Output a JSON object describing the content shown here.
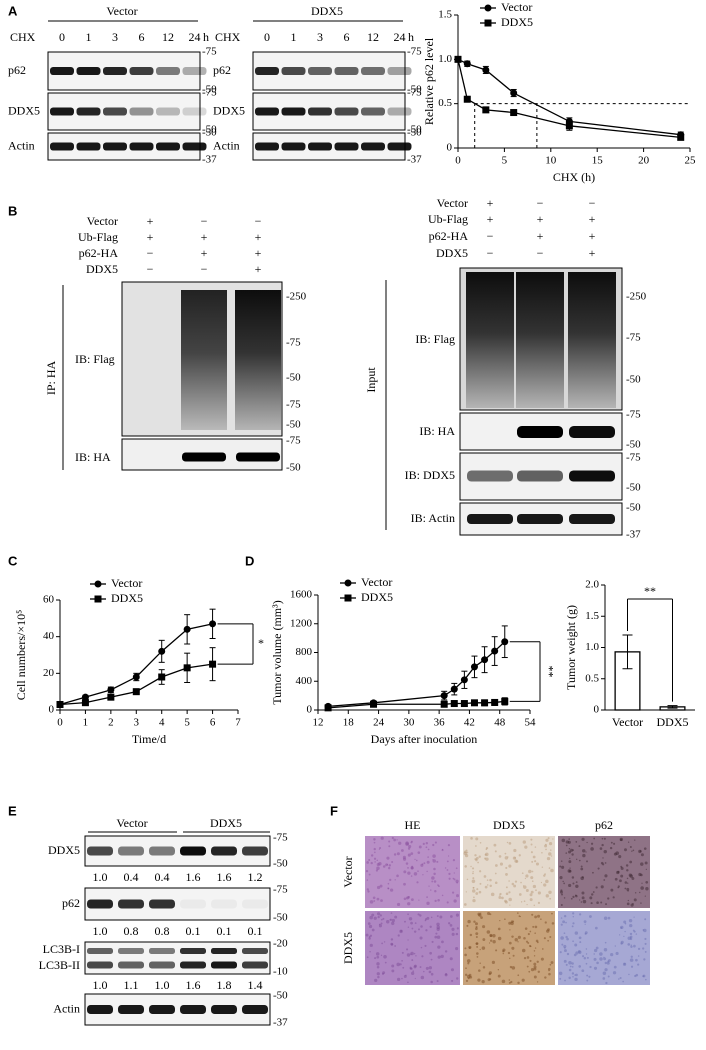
{
  "panel_labels": [
    "A",
    "B",
    "C",
    "D",
    "E",
    "F"
  ],
  "a_blots": [
    {
      "title": "Vector",
      "treatment": "CHX",
      "lanes": [
        "0",
        "1",
        "3",
        "6",
        "12",
        "24"
      ],
      "unit": "h",
      "rows": [
        "p62",
        "DDX5",
        "Actin"
      ],
      "markers": [
        [
          "-75",
          "-50"
        ],
        [
          "-75",
          "-50"
        ],
        [
          "-50",
          "-37"
        ]
      ]
    },
    {
      "title": "DDX5",
      "treatment": "CHX",
      "lanes": [
        "0",
        "1",
        "3",
        "6",
        "12",
        "24"
      ],
      "unit": "h",
      "rows": [
        "p62",
        "DDX5",
        "Actin"
      ],
      "markers": [
        [
          "-75",
          "-50"
        ],
        [
          "-75",
          "-50"
        ],
        [
          "-50",
          "-37"
        ]
      ]
    }
  ],
  "b_ip": {
    "conditions": [
      {
        "name": "Vector",
        "marks": [
          "+",
          "−",
          "−"
        ]
      },
      {
        "name": "Ub-Flag",
        "marks": [
          "+",
          "+",
          "+"
        ]
      },
      {
        "name": "p62-HA",
        "marks": [
          "−",
          "+",
          "+"
        ]
      },
      {
        "name": "DDX5",
        "marks": [
          "−",
          "−",
          "+"
        ]
      }
    ],
    "group_label": "IP: HA",
    "rows": [
      "IB: Flag",
      "IB: HA"
    ],
    "markers": [
      [
        "-250",
        "-75",
        "-50",
        "-75",
        "-50"
      ],
      [
        "-75",
        "-50"
      ]
    ]
  },
  "b_input": {
    "conditions": [
      {
        "name": "Vector",
        "marks": [
          "+",
          "−",
          "−"
        ]
      },
      {
        "name": "Ub-Flag",
        "marks": [
          "+",
          "+",
          "+"
        ]
      },
      {
        "name": "p62-HA",
        "marks": [
          "−",
          "+",
          "+"
        ]
      },
      {
        "name": "DDX5",
        "marks": [
          "−",
          "−",
          "+"
        ]
      }
    ],
    "group_label": "Input",
    "rows": [
      "IB: Flag",
      "IB: HA",
      "IB: DDX5",
      "IB: Actin"
    ],
    "markers": [
      [
        "-250",
        "-75",
        "-50"
      ],
      [
        "-75",
        "-50"
      ],
      [
        "-75",
        "-50"
      ],
      [
        "-50",
        "-37"
      ]
    ]
  },
  "e_blot": {
    "groups": [
      "Vector",
      "DDX5"
    ],
    "rows": [
      {
        "labels": [
          "DDX5"
        ],
        "quant": [
          "1.0",
          "0.4",
          "0.4",
          "1.6",
          "1.6",
          "1.2"
        ],
        "markers": [
          "-75",
          "-50"
        ]
      },
      {
        "labels": [
          "p62"
        ],
        "quant": [
          "1.0",
          "0.8",
          "0.8",
          "0.1",
          "0.1",
          "0.1"
        ],
        "markers": [
          "-75",
          "-50"
        ]
      },
      {
        "labels": [
          "LC3B-I",
          "LC3B-II"
        ],
        "quant": [
          "1.0",
          "1.1",
          "1.0",
          "1.6",
          "1.8",
          "1.4"
        ],
        "markers": [
          "-20",
          "-10"
        ]
      },
      {
        "labels": [
          "Actin"
        ],
        "markers": [
          "-50",
          "-37"
        ]
      }
    ]
  },
  "f_ihc": {
    "columns": [
      "HE",
      "DDX5",
      "p62"
    ],
    "rows": [
      "Vector",
      "DDX5"
    ]
  },
  "chart_data": [
    {
      "type": "line",
      "xlabel": "CHX (h)",
      "ylabel": "Relative p62 level",
      "x": [
        0,
        1,
        3,
        6,
        12,
        24
      ],
      "xlim": [
        0,
        25
      ],
      "xticks": [
        0,
        5,
        10,
        15,
        20,
        25
      ],
      "ylim": [
        0,
        1.5
      ],
      "yticks": [
        0,
        0.5,
        {
          "value": 1,
          "label": "1.0"
        },
        1.5
      ],
      "legend": "top-left",
      "series": [
        {
          "name": "Vector",
          "color": "#000000",
          "marker": "circle",
          "values": [
            1.0,
            0.95,
            0.88,
            0.62,
            0.3,
            0.15
          ],
          "errors": [
            0,
            0.03,
            0.04,
            0.04,
            0.04,
            0.03
          ]
        },
        {
          "name": "DDX5",
          "color": "#000000",
          "marker": "square",
          "values": [
            1.0,
            0.55,
            0.43,
            0.4,
            0.25,
            0.12
          ],
          "errors": [
            0,
            0.02,
            0.02,
            0.02,
            0.05,
            0.03
          ]
        }
      ],
      "reference_lines": {
        "y": 0.5,
        "x": [
          1.8,
          8.5
        ]
      }
    },
    {
      "type": "line",
      "xlabel": "Time/d",
      "ylabel": "Cell numbers/×10⁵",
      "x": [
        0,
        1,
        2,
        3,
        4,
        5,
        6
      ],
      "xlim": [
        0,
        7
      ],
      "xticks": [
        0,
        1,
        2,
        3,
        4,
        5,
        6,
        7
      ],
      "ylim": [
        0,
        60
      ],
      "yticks": [
        0,
        20,
        40,
        60
      ],
      "legend": "top-left",
      "annotation": "*",
      "series": [
        {
          "name": "Vector",
          "color": "#000000",
          "marker": "circle",
          "values": [
            3,
            7,
            11,
            18,
            32,
            44,
            47
          ],
          "errors": [
            1,
            1,
            1.5,
            2,
            6,
            8,
            8
          ]
        },
        {
          "name": "DDX5",
          "color": "#000000",
          "marker": "square",
          "values": [
            3,
            4,
            7,
            10,
            18,
            23,
            25
          ],
          "errors": [
            0.5,
            1,
            1,
            1,
            4,
            8,
            9
          ]
        }
      ]
    },
    {
      "type": "line",
      "xlabel": "Days after inoculation",
      "ylabel": "Tumor volume (mm³)",
      "x": [
        14,
        23,
        37,
        39,
        41,
        43,
        45,
        47,
        49
      ],
      "xlim": [
        12,
        54
      ],
      "xticks": [
        12,
        18,
        24,
        30,
        36,
        42,
        48,
        54
      ],
      "ylim": [
        0,
        1600
      ],
      "yticks": [
        0,
        400,
        800,
        1200,
        1600
      ],
      "legend": "top-left",
      "annotation": "**",
      "series": [
        {
          "name": "Vector",
          "color": "#000000",
          "marker": "circle",
          "values": [
            50,
            100,
            200,
            290,
            420,
            600,
            700,
            820,
            950
          ],
          "errors": [
            20,
            20,
            60,
            80,
            120,
            150,
            180,
            200,
            220
          ]
        },
        {
          "name": "DDX5",
          "color": "#000000",
          "marker": "square",
          "values": [
            30,
            80,
            80,
            90,
            90,
            100,
            100,
            105,
            120
          ],
          "errors": [
            10,
            20,
            20,
            20,
            30,
            30,
            40,
            40,
            50
          ]
        }
      ]
    },
    {
      "type": "bar",
      "ylabel": "Tumor weight (g)",
      "categories": [
        "Vector",
        "DDX5"
      ],
      "values": [
        0.93,
        0.05
      ],
      "errors": [
        0.27,
        0.02
      ],
      "color": "#ffffff",
      "ylim": [
        0,
        2
      ],
      "yticks": [
        0,
        0.5,
        {
          "value": 1,
          "label": "1.0"
        },
        1.5,
        {
          "value": 2,
          "label": "2.0"
        }
      ],
      "annotation": "**"
    }
  ]
}
